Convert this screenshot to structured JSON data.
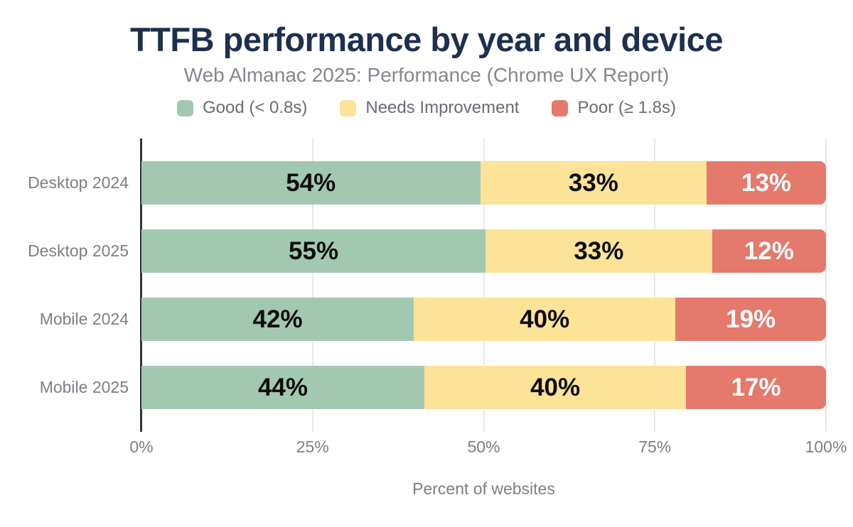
{
  "chart_data": {
    "type": "bar",
    "orientation": "horizontal",
    "stacked": true,
    "title": "TTFB performance by year and device",
    "subtitle": "Web Almanac 2025: Performance (Chrome UX Report)",
    "xlabel": "Percent of websites",
    "categories": [
      "Desktop 2024",
      "Desktop 2025",
      "Mobile 2024",
      "Mobile 2025"
    ],
    "series": [
      {
        "name": "Good (< 0.8s)",
        "color": "#a3c8b2",
        "label_color": "#0d0d0d",
        "values": [
          54,
          55,
          42,
          44
        ]
      },
      {
        "name": "Needs Improvement",
        "color": "#fce398",
        "label_color": "#0d0d0d",
        "values": [
          33,
          33,
          40,
          40
        ]
      },
      {
        "name": "Poor (≥ 1.8s)",
        "color": "#e4796c",
        "label_color": "#ffffff",
        "values": [
          13,
          12,
          19,
          17
        ]
      }
    ],
    "value_suffix": "%",
    "x_ticks": [
      0,
      25,
      50,
      75,
      100
    ],
    "x_tick_suffix": "%",
    "xlim": [
      0,
      100
    ],
    "grid": "vertical",
    "legend_position": "top",
    "colors": {
      "title": "#1e2f4f",
      "subtitle": "#84888e",
      "axis_line": "#333333",
      "gridline": "#e9e9e9",
      "tick_label": "#7b8086",
      "background": "#ffffff"
    }
  }
}
